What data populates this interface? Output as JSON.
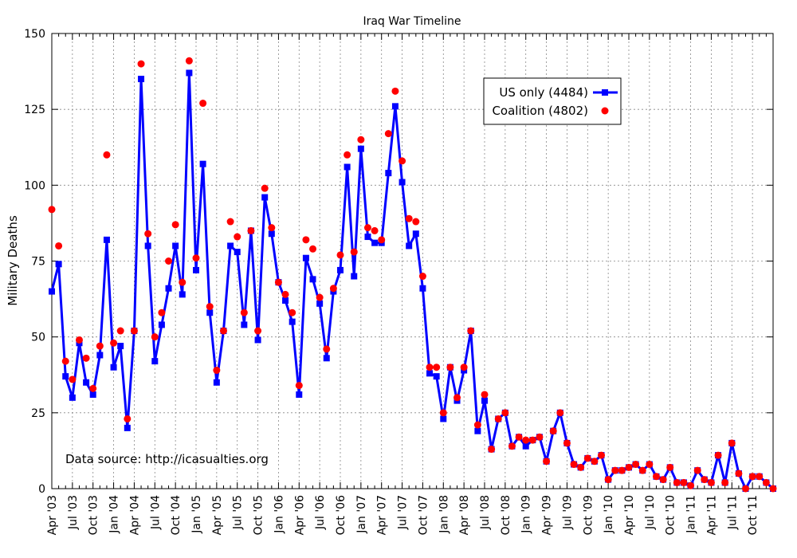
{
  "chart_data": {
    "type": "line",
    "title": "Iraq War Timeline",
    "xlabel": "",
    "ylabel": "Military Deaths",
    "ylim": [
      0,
      150
    ],
    "yticks": [
      0,
      25,
      50,
      75,
      100,
      125,
      150
    ],
    "grid": true,
    "legend_position": "top-right",
    "annotation": "Data source: http://icasualties.org",
    "xtick_labels": [
      "Apr '03",
      "Jul '03",
      "Oct '03",
      "Jan '04",
      "Apr '04",
      "Jul '04",
      "Oct '04",
      "Jan '05",
      "Apr '05",
      "Jul '05",
      "Oct '05",
      "Jan '06",
      "Apr '06",
      "Jul '06",
      "Oct '06",
      "Jan '07",
      "Apr '07",
      "Jul '07",
      "Oct '07",
      "Jan '08",
      "Apr '08",
      "Jul '08",
      "Oct '08",
      "Jan '09",
      "Apr '09",
      "Jul '09",
      "Oct '09",
      "Jan '10",
      "Apr '10",
      "Jul '10",
      "Oct '10",
      "Jan '11",
      "Apr '11",
      "Jul '11",
      "Oct '11"
    ],
    "series": [
      {
        "name": "US only (4484)",
        "color": "#0000ff",
        "style": "line-square",
        "values": [
          65,
          74,
          37,
          30,
          48,
          35,
          31,
          44,
          82,
          40,
          47,
          20,
          52,
          135,
          80,
          42,
          54,
          66,
          80,
          64,
          137,
          72,
          107,
          58,
          35,
          52,
          80,
          78,
          54,
          85,
          49,
          96,
          84,
          68,
          62,
          55,
          31,
          76,
          69,
          61,
          43,
          65,
          72,
          106,
          70,
          112,
          83,
          81,
          81,
          104,
          126,
          101,
          80,
          84,
          66,
          38,
          37,
          23,
          40,
          29,
          39,
          52,
          19,
          29,
          13,
          23,
          25,
          14,
          17,
          14,
          16,
          17,
          9,
          19,
          25,
          15,
          8,
          7,
          10,
          9,
          11,
          3,
          6,
          6,
          7,
          8,
          6,
          8,
          4,
          3,
          7,
          2,
          2,
          1,
          6,
          3,
          2,
          11,
          2,
          15,
          5,
          0,
          4,
          4,
          2,
          0
        ]
      },
      {
        "name": "Coalition (4802)",
        "color": "#ff0000",
        "style": "points",
        "values": [
          92,
          80,
          42,
          36,
          49,
          43,
          33,
          47,
          110,
          48,
          52,
          23,
          52,
          140,
          84,
          50,
          58,
          75,
          87,
          68,
          141,
          76,
          127,
          60,
          39,
          52,
          88,
          83,
          58,
          85,
          52,
          99,
          86,
          68,
          64,
          58,
          34,
          82,
          79,
          63,
          46,
          66,
          77,
          110,
          78,
          115,
          86,
          85,
          82,
          117,
          131,
          108,
          89,
          88,
          70,
          40,
          40,
          25,
          40,
          30,
          40,
          52,
          21,
          31,
          13,
          23,
          25,
          14,
          17,
          16,
          16,
          17,
          9,
          19,
          25,
          15,
          8,
          7,
          10,
          9,
          11,
          3,
          6,
          6,
          7,
          8,
          6,
          8,
          4,
          3,
          7,
          2,
          2,
          1,
          6,
          3,
          2,
          11,
          2,
          15,
          5,
          0,
          4,
          4,
          2,
          0
        ]
      }
    ]
  }
}
